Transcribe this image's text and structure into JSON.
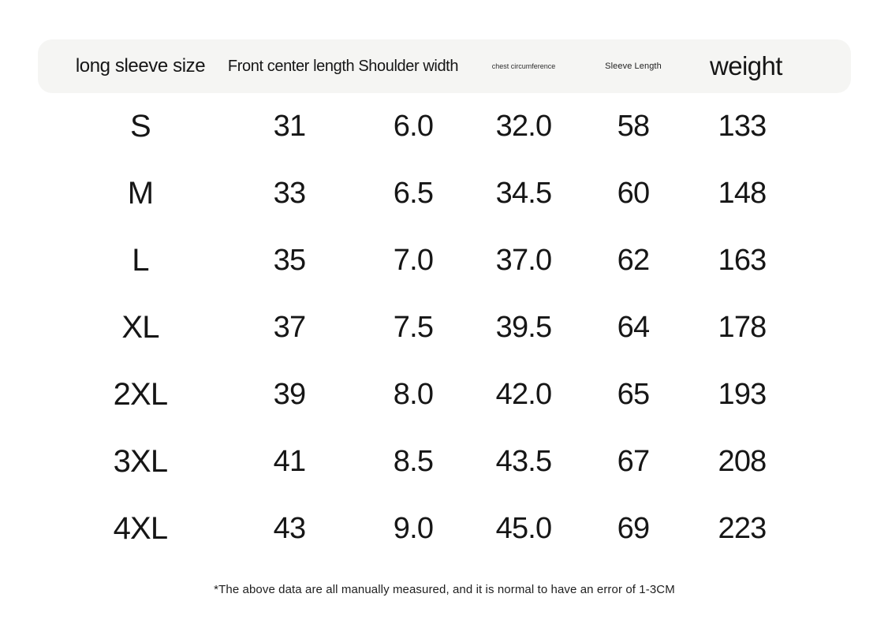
{
  "size_chart": {
    "headers": {
      "size": "long sleeve size",
      "front_center_length_shoulder_width": "Front center length Shoulder width",
      "chest_circumference": "chest circumference",
      "sleeve_length": "Sleeve Length",
      "weight": "weight"
    },
    "rows": [
      {
        "size": "S",
        "values": [
          "31",
          "6.0",
          "32.0",
          "58",
          "133"
        ]
      },
      {
        "size": "M",
        "values": [
          "33",
          "6.5",
          "34.5",
          "60",
          "148"
        ]
      },
      {
        "size": "L",
        "values": [
          "35",
          "7.0",
          "37.0",
          "62",
          "163"
        ]
      },
      {
        "size": "XL",
        "values": [
          "37",
          "7.5",
          "39.5",
          "64",
          "178"
        ]
      },
      {
        "size": "2XL",
        "values": [
          "39",
          "8.0",
          "42.0",
          "65",
          "193"
        ]
      },
      {
        "size": "3XL",
        "values": [
          "41",
          "8.5",
          "43.5",
          "67",
          "208"
        ]
      },
      {
        "size": "4XL",
        "values": [
          "43",
          "9.0",
          "45.0",
          "69",
          "223"
        ]
      }
    ],
    "footnote": "*The above data are all manually measured, and it is normal to have an error of 1-3CM"
  },
  "colors": {
    "page_background": "#ffffff",
    "header_background": "#f5f5f3",
    "text": "#161616"
  },
  "chart_data": {
    "type": "table",
    "columns": [
      "long sleeve size",
      "Front center length",
      "Shoulder width",
      "chest circumference",
      "Sleeve Length",
      "weight"
    ],
    "rows": [
      [
        "S",
        31,
        6.0,
        32.0,
        58,
        133
      ],
      [
        "M",
        33,
        6.5,
        34.5,
        60,
        148
      ],
      [
        "L",
        35,
        7.0,
        37.0,
        62,
        163
      ],
      [
        "XL",
        37,
        7.5,
        39.5,
        64,
        178
      ],
      [
        "2XL",
        39,
        8.0,
        42.0,
        65,
        193
      ],
      [
        "3XL",
        41,
        8.5,
        43.5,
        67,
        208
      ],
      [
        "4XL",
        43,
        9.0,
        45.0,
        69,
        223
      ]
    ],
    "footnote": "*The above data are all manually measured, and it is normal to have an error of 1-3CM",
    "layout": {
      "header_row_rounded": true,
      "grid": false,
      "alignment": "center"
    }
  }
}
